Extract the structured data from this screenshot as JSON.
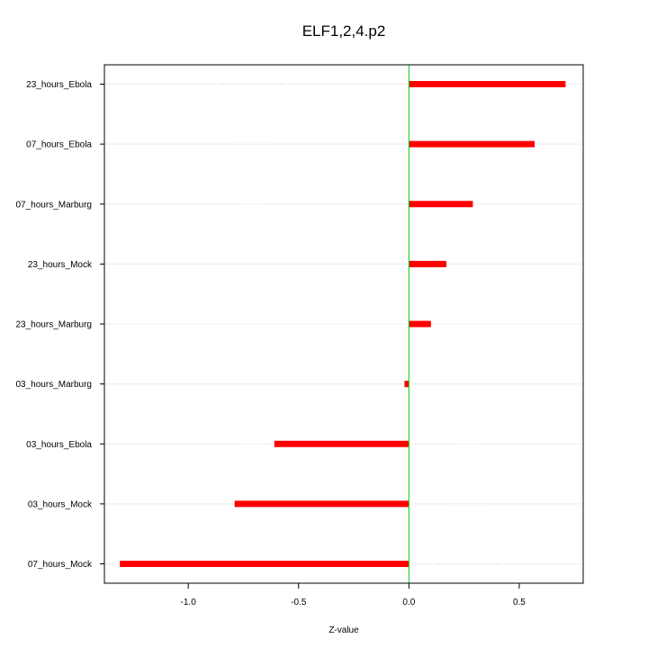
{
  "chart_data": {
    "type": "bar",
    "orientation": "horizontal",
    "title": "ELF1,2,4.p2",
    "xlabel": "Z-value",
    "ylabel": "",
    "categories": [
      "23_hours_Ebola",
      "07_hours_Ebola",
      "07_hours_Marburg",
      "23_hours_Mock",
      "23_hours_Marburg",
      "03_hours_Marburg",
      "03_hours_Ebola",
      "03_hours_Mock",
      "07_hours_Mock"
    ],
    "values": [
      0.71,
      0.57,
      0.29,
      0.17,
      0.1,
      -0.02,
      -0.61,
      -0.79,
      -1.31
    ],
    "xlim": [
      -1.38,
      0.79
    ],
    "xticks": [
      -1.0,
      -0.5,
      0.0,
      0.5
    ],
    "xtick_labels": [
      "-1.0",
      "-0.5",
      "0.0",
      "0.5"
    ],
    "grid": "horizontal dotted",
    "reference_line": 0,
    "colors": {
      "bar": "#ff0000",
      "reference_line": "#00cc00",
      "grid": "#cccccc",
      "axis": "#000000"
    }
  }
}
